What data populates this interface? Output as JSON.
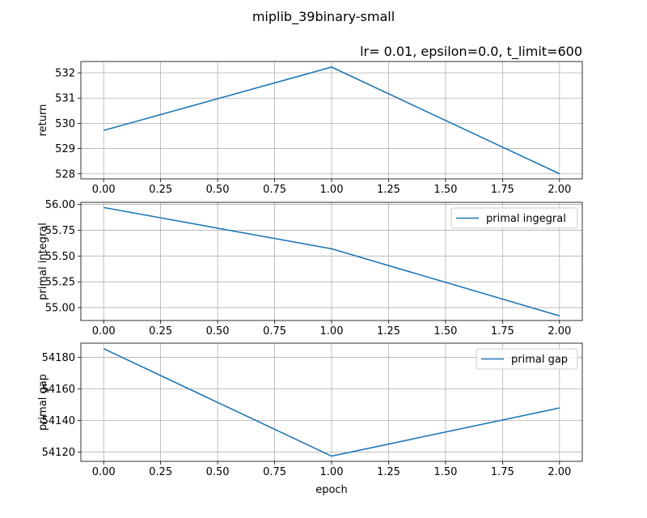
{
  "suptitle": "miplib_39binary-small",
  "chart_data": [
    {
      "type": "line",
      "title": "lr= 0.01, epsilon=0.0, t_limit=600",
      "xlabel": "",
      "ylabel": "return",
      "x": [
        0.0,
        1.0,
        2.0
      ],
      "series": [
        {
          "values": [
            529.72,
            532.23,
            528.0
          ]
        }
      ],
      "xticks": [
        "0.00",
        "0.25",
        "0.50",
        "0.75",
        "1.00",
        "1.25",
        "1.50",
        "1.75",
        "2.00"
      ],
      "yticks": [
        "528",
        "529",
        "530",
        "531",
        "532"
      ],
      "xlim": [
        -0.1,
        2.1
      ],
      "ylim": [
        527.8,
        532.45
      ],
      "grid": true,
      "legend": "none",
      "color": "#1f77b4"
    },
    {
      "type": "line",
      "title": "",
      "xlabel": "",
      "ylabel": "primal integral",
      "x": [
        0.0,
        1.0,
        2.0
      ],
      "series": [
        {
          "name": "primal ingegral",
          "values": [
            55.97,
            55.57,
            54.92
          ]
        }
      ],
      "xticks": [
        "0.00",
        "0.25",
        "0.50",
        "0.75",
        "1.00",
        "1.25",
        "1.50",
        "1.75",
        "2.00"
      ],
      "yticks": [
        "55.00",
        "55.25",
        "55.50",
        "55.75",
        "56.00"
      ],
      "xlim": [
        -0.1,
        2.1
      ],
      "ylim": [
        54.875,
        56.02
      ],
      "grid": true,
      "legend": "top-right",
      "color": "#1f77b4"
    },
    {
      "type": "line",
      "title": "",
      "xlabel": "epoch",
      "ylabel": "primal gap",
      "x": [
        0.0,
        1.0,
        2.0
      ],
      "series": [
        {
          "name": "primal gap",
          "values": [
            54185.5,
            54117.5,
            54148.0
          ]
        }
      ],
      "xticks": [
        "0.00",
        "0.25",
        "0.50",
        "0.75",
        "1.00",
        "1.25",
        "1.50",
        "1.75",
        "2.00"
      ],
      "yticks": [
        "54120",
        "54140",
        "54160",
        "54180"
      ],
      "xlim": [
        -0.1,
        2.1
      ],
      "ylim": [
        54114.2,
        54189.0
      ],
      "grid": true,
      "legend": "top-right",
      "color": "#1f77b4"
    }
  ]
}
